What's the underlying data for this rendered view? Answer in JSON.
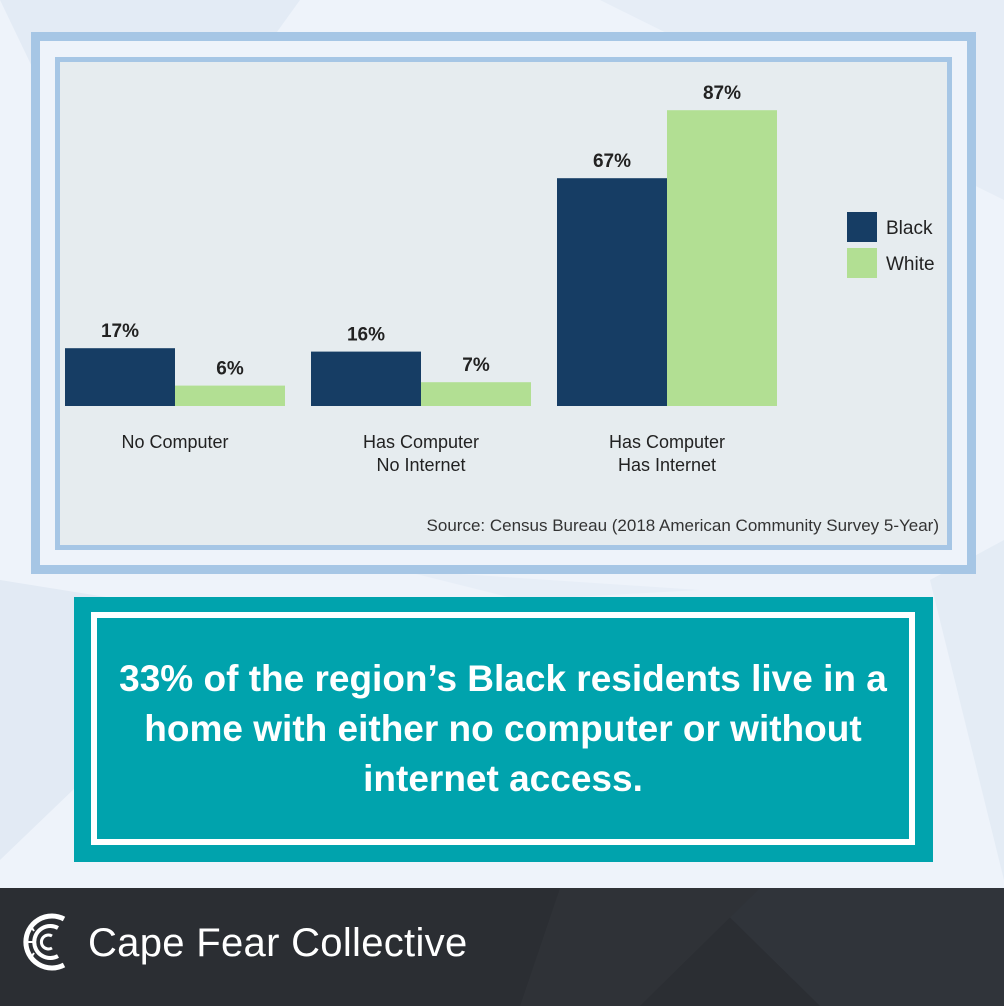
{
  "chart_data": {
    "type": "bar",
    "categories": [
      [
        "No Computer"
      ],
      [
        "Has Computer",
        "No Internet"
      ],
      [
        "Has Computer",
        "Has Internet"
      ]
    ],
    "series": [
      {
        "name": "Black",
        "values": [
          17,
          16,
          67
        ],
        "labels": [
          "17%",
          "16%",
          "67%"
        ],
        "color": "#163d64"
      },
      {
        "name": "White",
        "values": [
          6,
          7,
          87
        ],
        "labels": [
          "6%",
          "7%",
          "87%"
        ],
        "color": "#b2df93"
      }
    ],
    "unit": "%",
    "ylim": [
      0,
      100
    ],
    "grid": false,
    "legend_position": "right",
    "source": "Source: Census Bureau (2018 American Community Survey 5-Year)"
  },
  "callout": {
    "text": "33% of the region’s Black residents live in a home with either no computer or without internet access."
  },
  "brand": {
    "name": "Cape Fear Collective"
  },
  "colors": {
    "background": "#eef3fa",
    "frame": "#a6c6e5",
    "accent_teal": "#00a3ad",
    "footer": "#2b2e33"
  }
}
